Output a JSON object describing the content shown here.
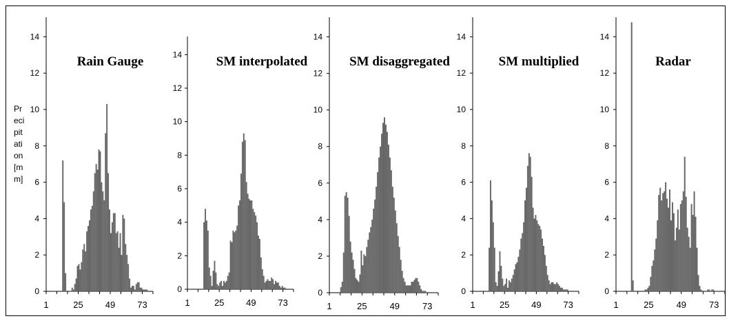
{
  "figure": {
    "ylabel_lines": [
      "Pr",
      "eci",
      "pit",
      "ati",
      "on",
      "[m",
      "m]"
    ],
    "bar_color": "#666666"
  },
  "chart_data": [
    {
      "type": "bar",
      "title": "Rain Gauge",
      "ylabel": "Precipitation [mm]",
      "ylim": [
        0,
        15
      ],
      "yticks": [
        "0",
        "2",
        "4",
        "6",
        "8",
        "10",
        "12",
        "14"
      ],
      "xticks": [
        "1",
        "25",
        "49",
        "73"
      ],
      "x_start": 1,
      "values": [
        0,
        0,
        0,
        0,
        0,
        0,
        0,
        0,
        0,
        0,
        0,
        0,
        7.2,
        4.9,
        1.0,
        0,
        0,
        0,
        0,
        0.2,
        0.1,
        0.4,
        0.7,
        1.4,
        1.5,
        1.2,
        1.6,
        2.3,
        2.6,
        2.2,
        3.3,
        3.6,
        3.9,
        4.5,
        4.7,
        5.5,
        6.5,
        7.0,
        6.7,
        7.8,
        7.7,
        6.0,
        5.5,
        5.0,
        8.7,
        10.3,
        6.5,
        4.5,
        3.2,
        3.8,
        4.3,
        4.3,
        3.2,
        3.3,
        2.4,
        3.2,
        2.0,
        4.2,
        4.0,
        2.6,
        2.0,
        1.5,
        0.7,
        0.2,
        0.3,
        0.3,
        0.1,
        0.4,
        0.5,
        0.5,
        0.2,
        0.2,
        0.1,
        0.1,
        0.1,
        0.1,
        0,
        0,
        0,
        0
      ]
    },
    {
      "type": "bar",
      "title": "SM interpolated",
      "ylim": [
        0,
        15
      ],
      "yticks": [
        "0",
        "2",
        "4",
        "6",
        "8",
        "10",
        "12",
        "14"
      ],
      "xticks": [
        "1",
        "25",
        "49",
        "73"
      ],
      "x_start": 1,
      "values": [
        0,
        0,
        0,
        0,
        0,
        0,
        0,
        0,
        0,
        0,
        0,
        0,
        4.0,
        4.8,
        4.1,
        3.5,
        1.3,
        0.8,
        0.2,
        1.1,
        1.7,
        1.0,
        0.3,
        0.2,
        0.4,
        0.5,
        0.2,
        0.5,
        0.4,
        0.5,
        0.8,
        1.0,
        2.9,
        2.8,
        3.5,
        3.4,
        3.5,
        3.8,
        5.0,
        5.3,
        6.9,
        8.8,
        9.3,
        8.9,
        6.4,
        5.7,
        5.4,
        5.3,
        5.3,
        4.8,
        4.6,
        4.4,
        4.0,
        3.2,
        3.0,
        1.9,
        1.2,
        0.8,
        0.4,
        0.5,
        0.6,
        0.5,
        0.5,
        0.7,
        0.6,
        0.3,
        0.5,
        0.4,
        0.4,
        0.2,
        0.1,
        0.2,
        0.1,
        0.1,
        0,
        0,
        0,
        0,
        0,
        0
      ]
    },
    {
      "type": "bar",
      "title": "SM disaggregated",
      "ylim": [
        0,
        15
      ],
      "yticks": [
        "0",
        "2",
        "4",
        "6",
        "8",
        "10",
        "12",
        "14"
      ],
      "xticks": [
        "1",
        "25",
        "49",
        "73"
      ],
      "x_start": 1,
      "values": [
        0,
        0,
        0,
        0,
        0,
        0,
        0,
        0,
        0.3,
        0.6,
        2.2,
        5.3,
        5.5,
        5.2,
        4.2,
        2.8,
        2.2,
        1.8,
        1.3,
        0.8,
        0.7,
        0.6,
        1.0,
        2.3,
        1.5,
        2.1,
        2.0,
        2.5,
        2.9,
        3.3,
        3.6,
        4.0,
        4.6,
        5.1,
        5.8,
        6.6,
        7.4,
        8.0,
        8.7,
        9.3,
        9.6,
        9.2,
        8.8,
        8.1,
        7.4,
        6.7,
        5.8,
        5.2,
        4.5,
        3.8,
        3.1,
        2.5,
        1.8,
        1.2,
        0.8,
        0.6,
        0.4,
        0.4,
        0.4,
        0.4,
        0.6,
        0.6,
        0.7,
        0.8,
        0.8,
        0.6,
        0.4,
        0.2,
        0.1,
        0.1,
        0.1,
        0,
        0,
        0,
        0,
        0,
        0,
        0,
        0,
        0
      ]
    },
    {
      "type": "bar",
      "title": "SM multiplied",
      "ylim": [
        0,
        15
      ],
      "yticks": [
        "0",
        "2",
        "4",
        "6",
        "8",
        "10",
        "12",
        "14"
      ],
      "xticks": [
        "1",
        "25",
        "49",
        "73"
      ],
      "x_start": 1,
      "values": [
        0,
        0,
        0,
        0,
        0,
        0,
        0,
        0,
        0,
        0,
        0,
        0,
        2.4,
        6.1,
        5.0,
        3.8,
        2.4,
        0.5,
        0.3,
        1.1,
        2.2,
        1.4,
        0.7,
        0.3,
        0.4,
        0.7,
        0.2,
        0.6,
        0.5,
        0.7,
        0.9,
        1.2,
        1.5,
        1.6,
        1.9,
        2.3,
        2.9,
        3.2,
        3.8,
        5.0,
        5.7,
        6.9,
        7.6,
        7.4,
        6.3,
        4.6,
        4.0,
        4.2,
        3.9,
        3.7,
        3.6,
        3.4,
        2.9,
        2.5,
        2.0,
        1.4,
        0.9,
        0.6,
        0.4,
        0.5,
        0.5,
        0.4,
        0.4,
        0.5,
        0.4,
        0.3,
        0.2,
        0.2,
        0.1,
        0.1,
        0.1,
        0.1,
        0,
        0,
        0,
        0,
        0,
        0,
        0,
        0
      ]
    },
    {
      "type": "bar",
      "title": "Radar",
      "ylim": [
        0,
        15
      ],
      "yticks": [
        "0",
        "2",
        "4",
        "6",
        "8",
        "10",
        "12",
        "14"
      ],
      "xticks": [
        "1",
        "25",
        "49",
        "73"
      ],
      "x_start": 1,
      "values": [
        0,
        0,
        0,
        0,
        0,
        0,
        0,
        0,
        0,
        0,
        0,
        14.8,
        0.6,
        0,
        0,
        0,
        0,
        0,
        0,
        0,
        0,
        0.1,
        0.1,
        0.2,
        0.3,
        0.8,
        1.4,
        1.7,
        2.3,
        2.9,
        3.9,
        5.3,
        5.7,
        5.0,
        5.4,
        5.5,
        6.0,
        5.1,
        4.6,
        5.6,
        3.9,
        4.9,
        4.3,
        2.8,
        3.5,
        4.5,
        3.4,
        4.8,
        5.0,
        5.5,
        7.4,
        5.2,
        3.5,
        3.0,
        2.4,
        4.8,
        4.2,
        5.5,
        4.1,
        2.4,
        0.9,
        0.3,
        0.1,
        0,
        0,
        0,
        0,
        0.1,
        0.1,
        0,
        0.1,
        0.1,
        0,
        0,
        0,
        0,
        0,
        0,
        0,
        0
      ]
    }
  ]
}
